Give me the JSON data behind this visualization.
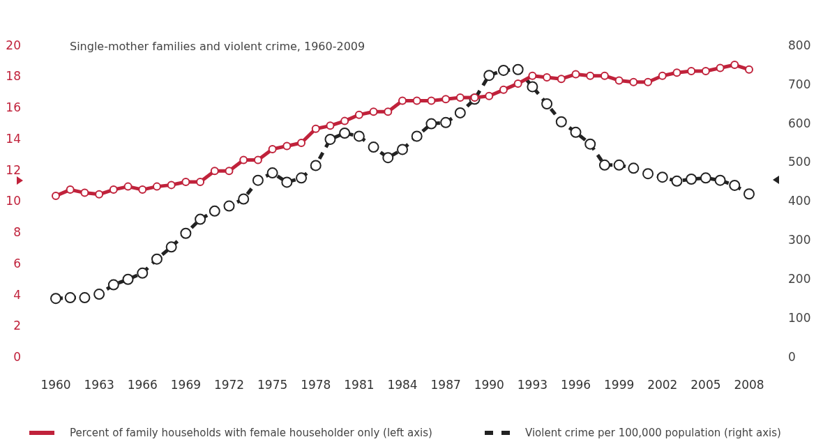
{
  "chart_data": {
    "type": "line",
    "title": "Single-mother families and violent crime, 1960-2009",
    "x": [
      1960,
      1961,
      1962,
      1963,
      1964,
      1965,
      1966,
      1967,
      1968,
      1969,
      1970,
      1971,
      1972,
      1973,
      1974,
      1975,
      1976,
      1977,
      1978,
      1979,
      1980,
      1981,
      1982,
      1983,
      1984,
      1985,
      1986,
      1987,
      1988,
      1989,
      1990,
      1991,
      1992,
      1993,
      1994,
      1995,
      1996,
      1997,
      1998,
      1999,
      2000,
      2001,
      2002,
      2003,
      2004,
      2005,
      2006,
      2007,
      2008
    ],
    "series": [
      {
        "name": "Percent of family households with female householder only (left axis)",
        "color": "#c0223b",
        "axis": "y",
        "line_style": "solid",
        "values": [
          10.4,
          10.8,
          10.6,
          10.5,
          10.8,
          11.0,
          10.8,
          11.0,
          11.1,
          11.3,
          11.3,
          12.0,
          12.0,
          12.7,
          12.7,
          13.4,
          13.6,
          13.8,
          14.7,
          14.9,
          15.2,
          15.6,
          15.8,
          15.8,
          16.5,
          16.5,
          16.5,
          16.6,
          16.7,
          16.7,
          16.8,
          17.2,
          17.6,
          18.1,
          18.0,
          17.9,
          18.2,
          18.1,
          18.1,
          17.8,
          17.7,
          17.7,
          18.1,
          18.3,
          18.4,
          18.4,
          18.6,
          18.8,
          18.5
        ]
      },
      {
        "name": "Violent crime per 100,000 population (right axis)",
        "color": "#222222",
        "axis": "y2",
        "line_style": "dashed",
        "values": [
          153,
          155,
          155,
          164,
          188,
          202,
          218,
          254,
          285,
          320,
          356,
          377,
          390,
          408,
          456,
          475,
          451,
          462,
          494,
          561,
          577,
          569,
          541,
          514,
          535,
          569,
          601,
          604,
          629,
          664,
          725,
          738,
          740,
          696,
          652,
          606,
          579,
          549,
          495,
          495,
          487,
          473,
          464,
          454,
          459,
          462,
          456,
          443,
          421
        ]
      }
    ],
    "xlim": [
      1960,
      2008
    ],
    "xticks": [
      1960,
      1963,
      1966,
      1969,
      1972,
      1975,
      1978,
      1981,
      1984,
      1987,
      1990,
      1993,
      1996,
      1999,
      2002,
      2005,
      2008
    ],
    "ylim": [
      0,
      20
    ],
    "yticks": [
      0,
      2,
      4,
      6,
      8,
      10,
      12,
      14,
      16,
      18,
      20
    ],
    "y2lim": [
      0,
      800
    ],
    "y2ticks": [
      0,
      100,
      200,
      300,
      400,
      500,
      600,
      700,
      800
    ],
    "grid": false,
    "legend": "bottom",
    "marker": "circle"
  }
}
